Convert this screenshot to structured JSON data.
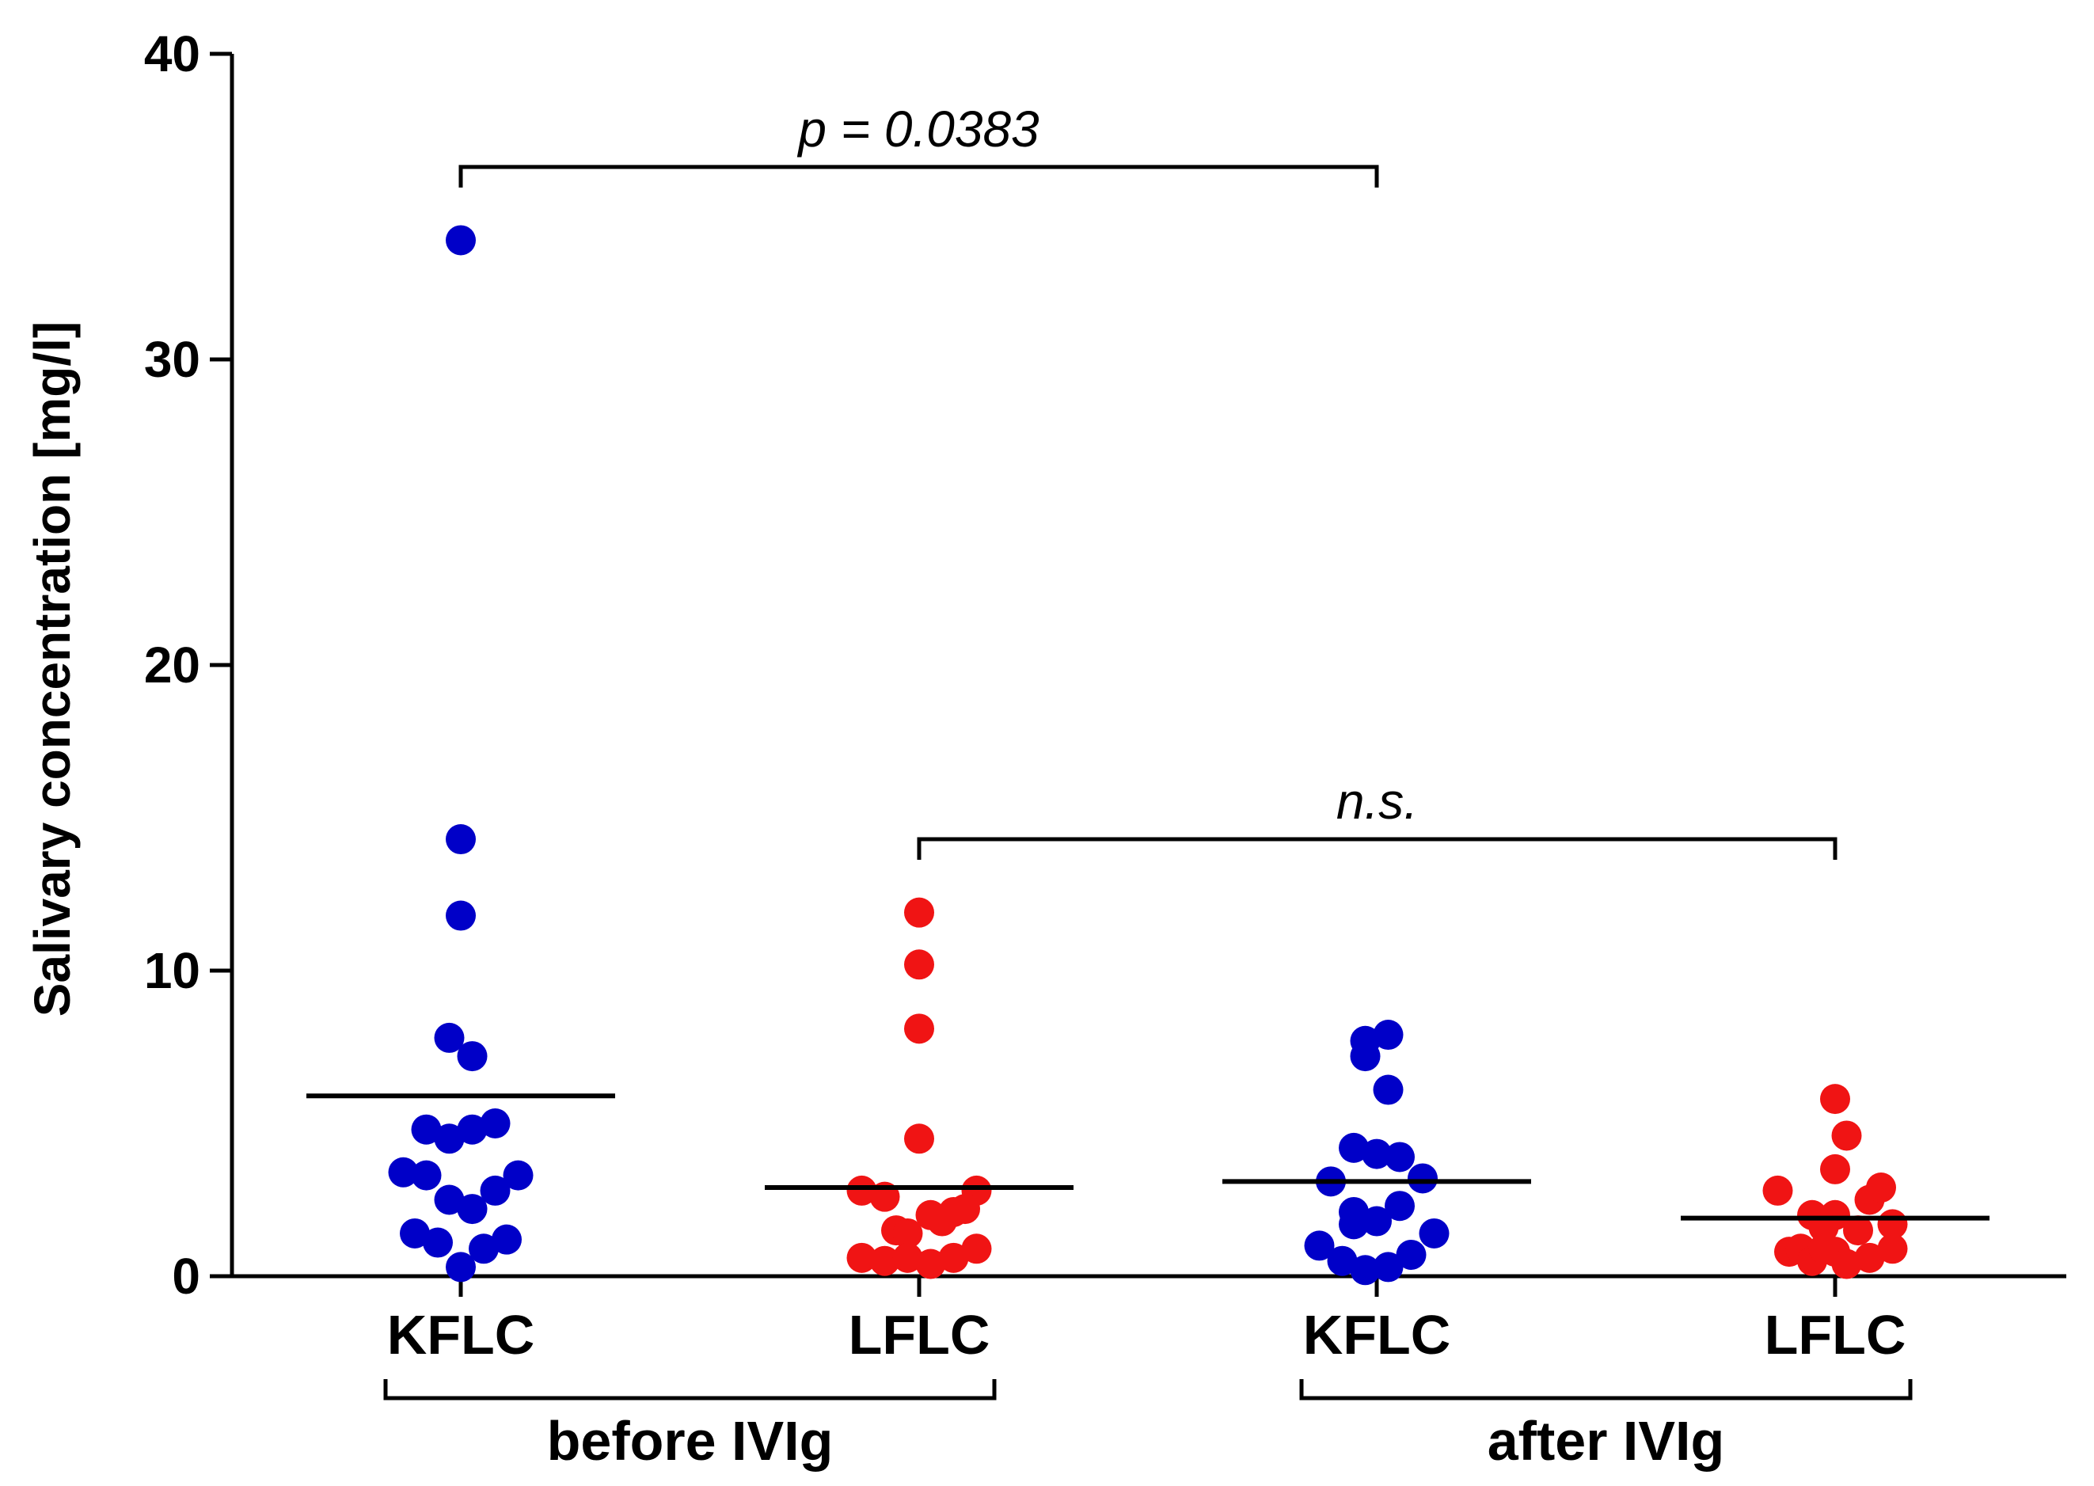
{
  "chart_data": {
    "type": "scatter",
    "title": "",
    "xlabel": "",
    "ylabel": "Salivary concentration [mg/l]",
    "ylim": [
      0,
      40
    ],
    "yticks": [
      0,
      10,
      20,
      30,
      40
    ],
    "grid": false,
    "categories": [
      "KFLC",
      "LFLC",
      "KFLC",
      "LFLC"
    ],
    "groups": [
      {
        "label": "before IVIg",
        "from": 0,
        "to": 1
      },
      {
        "label": "after IVIg",
        "from": 2,
        "to": 3
      }
    ],
    "series": [
      {
        "name": "KFLC before IVIg",
        "color": "#0000c8",
        "mean": 5.9,
        "points": [
          [
            0.0,
            33.9
          ],
          [
            0.0,
            14.3
          ],
          [
            0.0,
            11.8
          ],
          [
            -0.05,
            7.8
          ],
          [
            0.05,
            7.2
          ],
          [
            -0.15,
            4.8
          ],
          [
            -0.05,
            4.5
          ],
          [
            0.05,
            4.8
          ],
          [
            0.15,
            5.0
          ],
          [
            -0.25,
            3.4
          ],
          [
            -0.15,
            3.3
          ],
          [
            0.25,
            3.3
          ],
          [
            -0.05,
            2.5
          ],
          [
            0.05,
            2.2
          ],
          [
            0.15,
            2.8
          ],
          [
            -0.2,
            1.4
          ],
          [
            -0.1,
            1.1
          ],
          [
            0.2,
            1.2
          ],
          [
            0.1,
            0.9
          ],
          [
            0.0,
            0.3
          ]
        ]
      },
      {
        "name": "LFLC before IVIg",
        "color": "#f01414",
        "mean": 2.9,
        "points": [
          [
            0.0,
            11.9
          ],
          [
            0.0,
            10.2
          ],
          [
            0.0,
            8.1
          ],
          [
            0.0,
            4.5
          ],
          [
            -0.25,
            2.8
          ],
          [
            -0.15,
            2.6
          ],
          [
            0.25,
            2.8
          ],
          [
            -0.1,
            1.5
          ],
          [
            -0.05,
            1.4
          ],
          [
            0.05,
            2.0
          ],
          [
            0.1,
            1.8
          ],
          [
            0.15,
            2.1
          ],
          [
            0.2,
            2.2
          ],
          [
            -0.25,
            0.6
          ],
          [
            -0.15,
            0.5
          ],
          [
            -0.05,
            0.6
          ],
          [
            0.05,
            0.4
          ],
          [
            0.15,
            0.6
          ],
          [
            0.25,
            0.9
          ]
        ]
      },
      {
        "name": "KFLC after IVIg",
        "color": "#0000c8",
        "mean": 3.1,
        "points": [
          [
            -0.05,
            7.7
          ],
          [
            -0.05,
            7.2
          ],
          [
            0.05,
            7.9
          ],
          [
            0.05,
            6.1
          ],
          [
            -0.1,
            4.2
          ],
          [
            0.0,
            4.0
          ],
          [
            0.1,
            3.9
          ],
          [
            -0.2,
            3.1
          ],
          [
            0.2,
            3.2
          ],
          [
            -0.1,
            2.1
          ],
          [
            -0.1,
            1.7
          ],
          [
            0.0,
            1.8
          ],
          [
            0.1,
            2.3
          ],
          [
            0.25,
            1.4
          ],
          [
            -0.25,
            1.0
          ],
          [
            -0.15,
            0.5
          ],
          [
            -0.05,
            0.2
          ],
          [
            0.05,
            0.3
          ],
          [
            0.15,
            0.7
          ]
        ]
      },
      {
        "name": "LFLC after IVIg",
        "color": "#f01414",
        "mean": 1.9,
        "points": [
          [
            0.0,
            5.8
          ],
          [
            0.05,
            4.6
          ],
          [
            0.0,
            3.5
          ],
          [
            -0.25,
            2.8
          ],
          [
            0.15,
            2.5
          ],
          [
            0.2,
            2.9
          ],
          [
            -0.1,
            2.0
          ],
          [
            0.0,
            2.0
          ],
          [
            -0.05,
            1.6
          ],
          [
            0.1,
            1.5
          ],
          [
            0.25,
            1.7
          ],
          [
            -0.2,
            0.8
          ],
          [
            -0.15,
            0.9
          ],
          [
            -0.1,
            0.5
          ],
          [
            -0.05,
            0.9
          ],
          [
            0.0,
            0.8
          ],
          [
            0.05,
            0.4
          ],
          [
            0.15,
            0.6
          ],
          [
            0.25,
            0.9
          ]
        ]
      }
    ],
    "comparisons": [
      {
        "from": 0,
        "to": 2,
        "label": "p = 0.0383"
      },
      {
        "from": 1,
        "to": 3,
        "label": "n.s."
      }
    ]
  }
}
